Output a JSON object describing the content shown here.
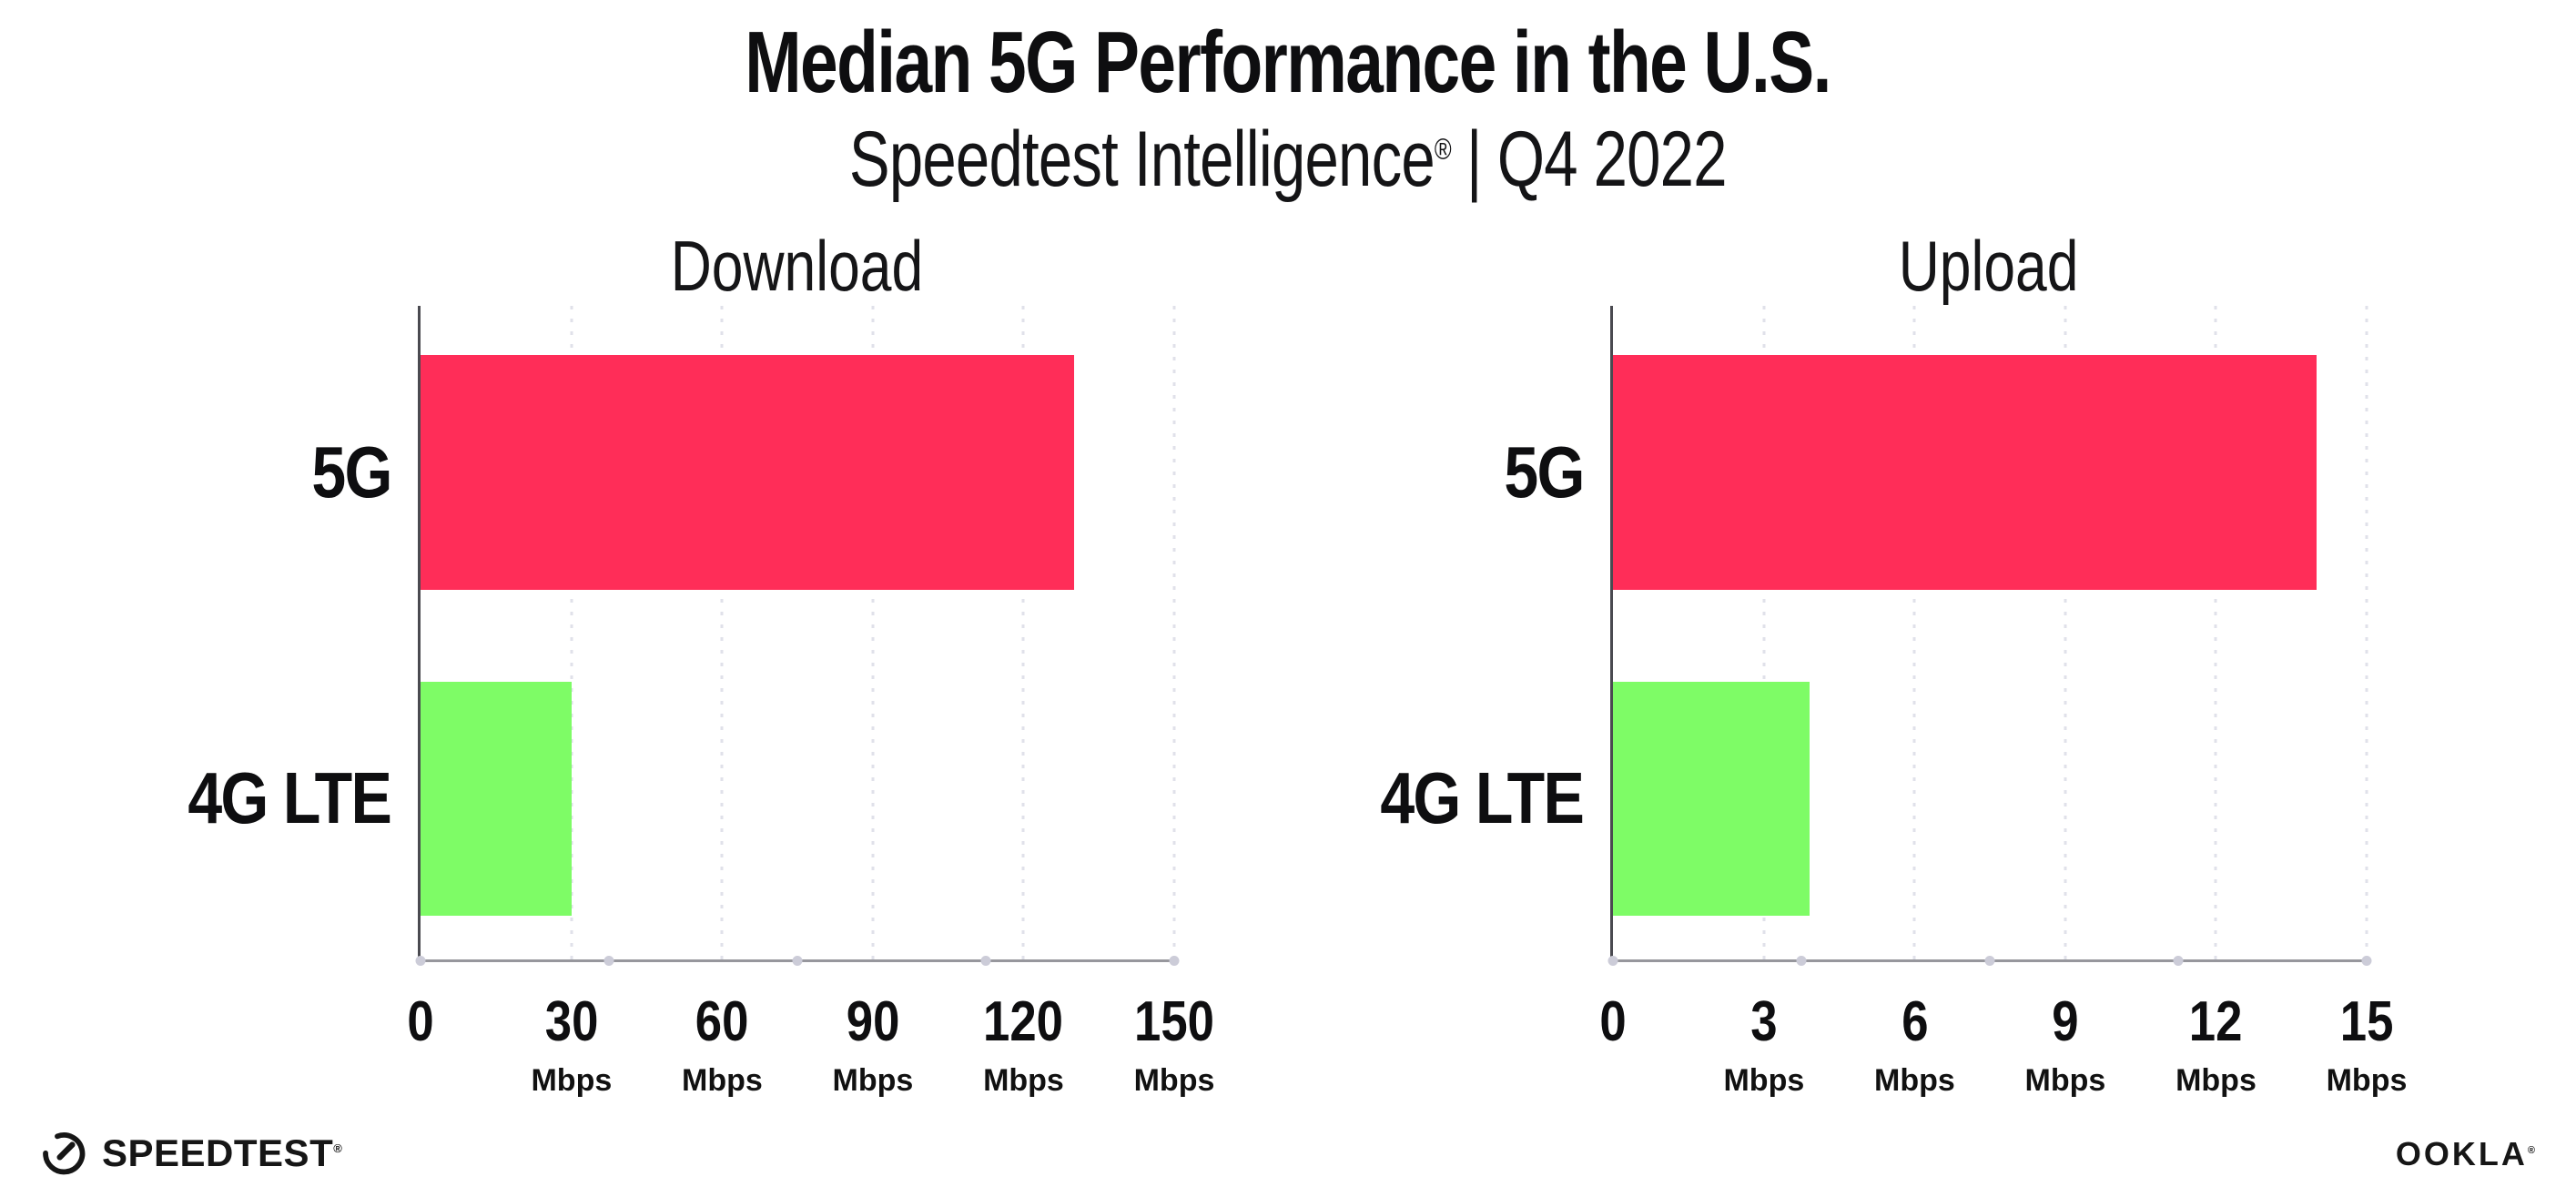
{
  "header": {
    "title": "Median 5G Performance in the U.S.",
    "subtitle_brand": "Speedtest Intelligence",
    "subtitle_reg": "®",
    "subtitle_sep": "|",
    "subtitle_period": "Q4 2022"
  },
  "chart_data": [
    {
      "type": "bar",
      "orientation": "horizontal",
      "title": "Download",
      "categories": [
        "5G",
        "4G LTE"
      ],
      "values": [
        130,
        30
      ],
      "unit": "Mbps",
      "xlim": [
        0,
        150
      ],
      "xticks": [
        0,
        30,
        60,
        90,
        120,
        150
      ],
      "tick_unit_label": "Mbps",
      "bar_colors": [
        "#ff2d58",
        "#7efc66"
      ],
      "grid": "vertical-dotted",
      "legend": "none"
    },
    {
      "type": "bar",
      "orientation": "horizontal",
      "title": "Upload",
      "categories": [
        "5G",
        "4G LTE"
      ],
      "values": [
        14,
        3.9
      ],
      "unit": "Mbps",
      "xlim": [
        0,
        15
      ],
      "xticks": [
        0,
        3,
        6,
        9,
        12,
        15
      ],
      "tick_unit_label": "Mbps",
      "bar_colors": [
        "#ff2d58",
        "#7efc66"
      ],
      "grid": "vertical-dotted",
      "legend": "none"
    }
  ],
  "footer": {
    "speedtest_logo_text": "SPEEDTEST",
    "speedtest_reg": "®",
    "ookla_logo_text": "OOKLA",
    "ookla_reg": "®"
  },
  "colors": {
    "bar_5g": "#ff2d58",
    "bar_4g_lte": "#7efc66",
    "gridline": "#e0e1ea",
    "axis_line": "#97979d",
    "axis_dot": "#ccccd8",
    "spine": "#4a4a50",
    "text": "#0e0e10",
    "background": "#ffffff"
  }
}
